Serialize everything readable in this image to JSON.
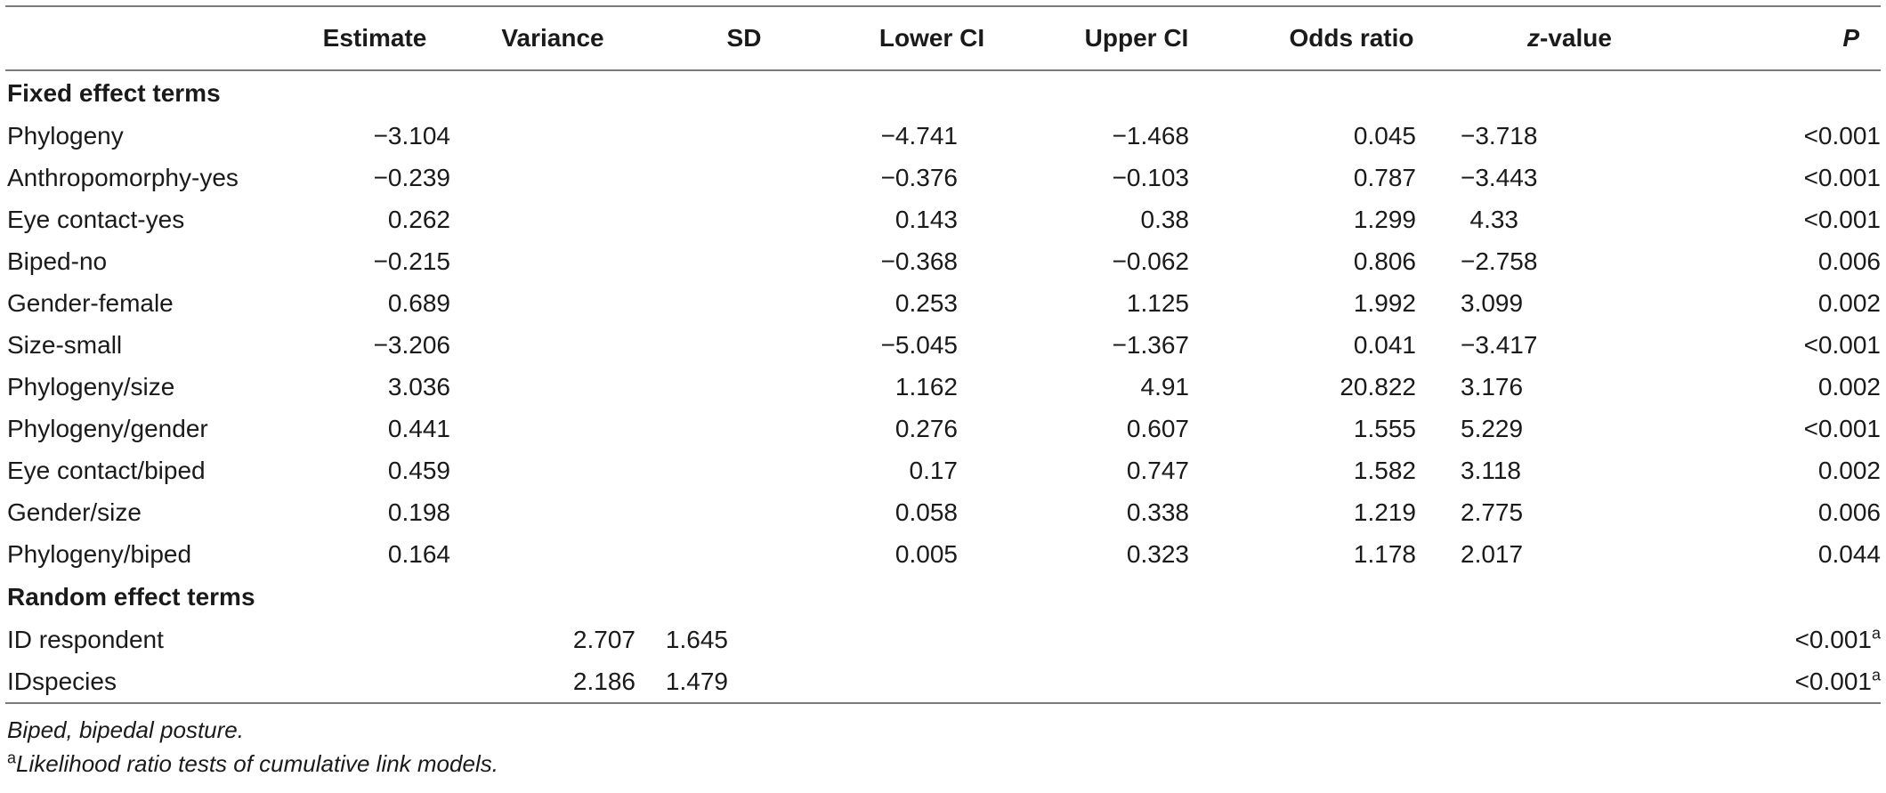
{
  "headers": [
    "",
    "Estimate",
    "Variance",
    "SD",
    "Lower CI",
    "Upper CI",
    "Odds ratio",
    "z-value",
    "P"
  ],
  "sections": [
    {
      "title": "Fixed effect terms",
      "rows": [
        {
          "label": "Phylogeny",
          "estimate": "−3.104",
          "variance": "",
          "sd": "",
          "lower": "−4.741",
          "upper": "−1.468",
          "or": "0.045",
          "z": "−3.718",
          "p": "<0.001",
          "p_sup": ""
        },
        {
          "label": "Anthropomorphy-yes",
          "estimate": "−0.239",
          "variance": "",
          "sd": "",
          "lower": "−0.376",
          "upper": "−0.103",
          "or": "0.787",
          "z": "−3.443",
          "p": "<0.001",
          "p_sup": ""
        },
        {
          "label": "Eye contact-yes",
          "estimate": "0.262",
          "variance": "",
          "sd": "",
          "lower": "0.143",
          "upper": "0.38",
          "or": "1.299",
          "z": "4.33",
          "p": "<0.001",
          "p_sup": ""
        },
        {
          "label": "Biped-no",
          "estimate": "−0.215",
          "variance": "",
          "sd": "",
          "lower": "−0.368",
          "upper": "−0.062",
          "or": "0.806",
          "z": "−2.758",
          "p": "0.006",
          "p_sup": ""
        },
        {
          "label": "Gender-female",
          "estimate": "0.689",
          "variance": "",
          "sd": "",
          "lower": "0.253",
          "upper": "1.125",
          "or": "1.992",
          "z": "3.099",
          "p": "0.002",
          "p_sup": ""
        },
        {
          "label": "Size-small",
          "estimate": "−3.206",
          "variance": "",
          "sd": "",
          "lower": "−5.045",
          "upper": "−1.367",
          "or": "0.041",
          "z": "−3.417",
          "p": "<0.001",
          "p_sup": ""
        },
        {
          "label": "Phylogeny/size",
          "estimate": "3.036",
          "variance": "",
          "sd": "",
          "lower": "1.162",
          "upper": "4.91",
          "or": "20.822",
          "z": "3.176",
          "p": "0.002",
          "p_sup": ""
        },
        {
          "label": "Phylogeny/gender",
          "estimate": "0.441",
          "variance": "",
          "sd": "",
          "lower": "0.276",
          "upper": "0.607",
          "or": "1.555",
          "z": "5.229",
          "p": "<0.001",
          "p_sup": ""
        },
        {
          "label": "Eye contact/biped",
          "estimate": "0.459",
          "variance": "",
          "sd": "",
          "lower": "0.17",
          "upper": "0.747",
          "or": "1.582",
          "z": "3.118",
          "p": "0.002",
          "p_sup": ""
        },
        {
          "label": "Gender/size",
          "estimate": "0.198",
          "variance": "",
          "sd": "",
          "lower": "0.058",
          "upper": "0.338",
          "or": "1.219",
          "z": "2.775",
          "p": "0.006",
          "p_sup": ""
        },
        {
          "label": "Phylogeny/biped",
          "estimate": "0.164",
          "variance": "",
          "sd": "",
          "lower": "0.005",
          "upper": "0.323",
          "or": "1.178",
          "z": "2.017",
          "p": "0.044",
          "p_sup": ""
        }
      ]
    },
    {
      "title": "Random effect terms",
      "rows": [
        {
          "label": "ID respondent",
          "estimate": "",
          "variance": "2.707",
          "sd": "1.645",
          "lower": "",
          "upper": "",
          "or": "",
          "z": "",
          "p": "<0.001",
          "p_sup": "a"
        },
        {
          "label": "IDspecies",
          "estimate": "",
          "variance": "2.186",
          "sd": "1.479",
          "lower": "",
          "upper": "",
          "or": "",
          "z": "",
          "p": "<0.001",
          "p_sup": "a"
        }
      ]
    }
  ],
  "footnotes": [
    {
      "sup": "",
      "text": "Biped, bipedal posture."
    },
    {
      "sup": "a",
      "text": "Likelihood ratio tests of cumulative link models."
    }
  ]
}
